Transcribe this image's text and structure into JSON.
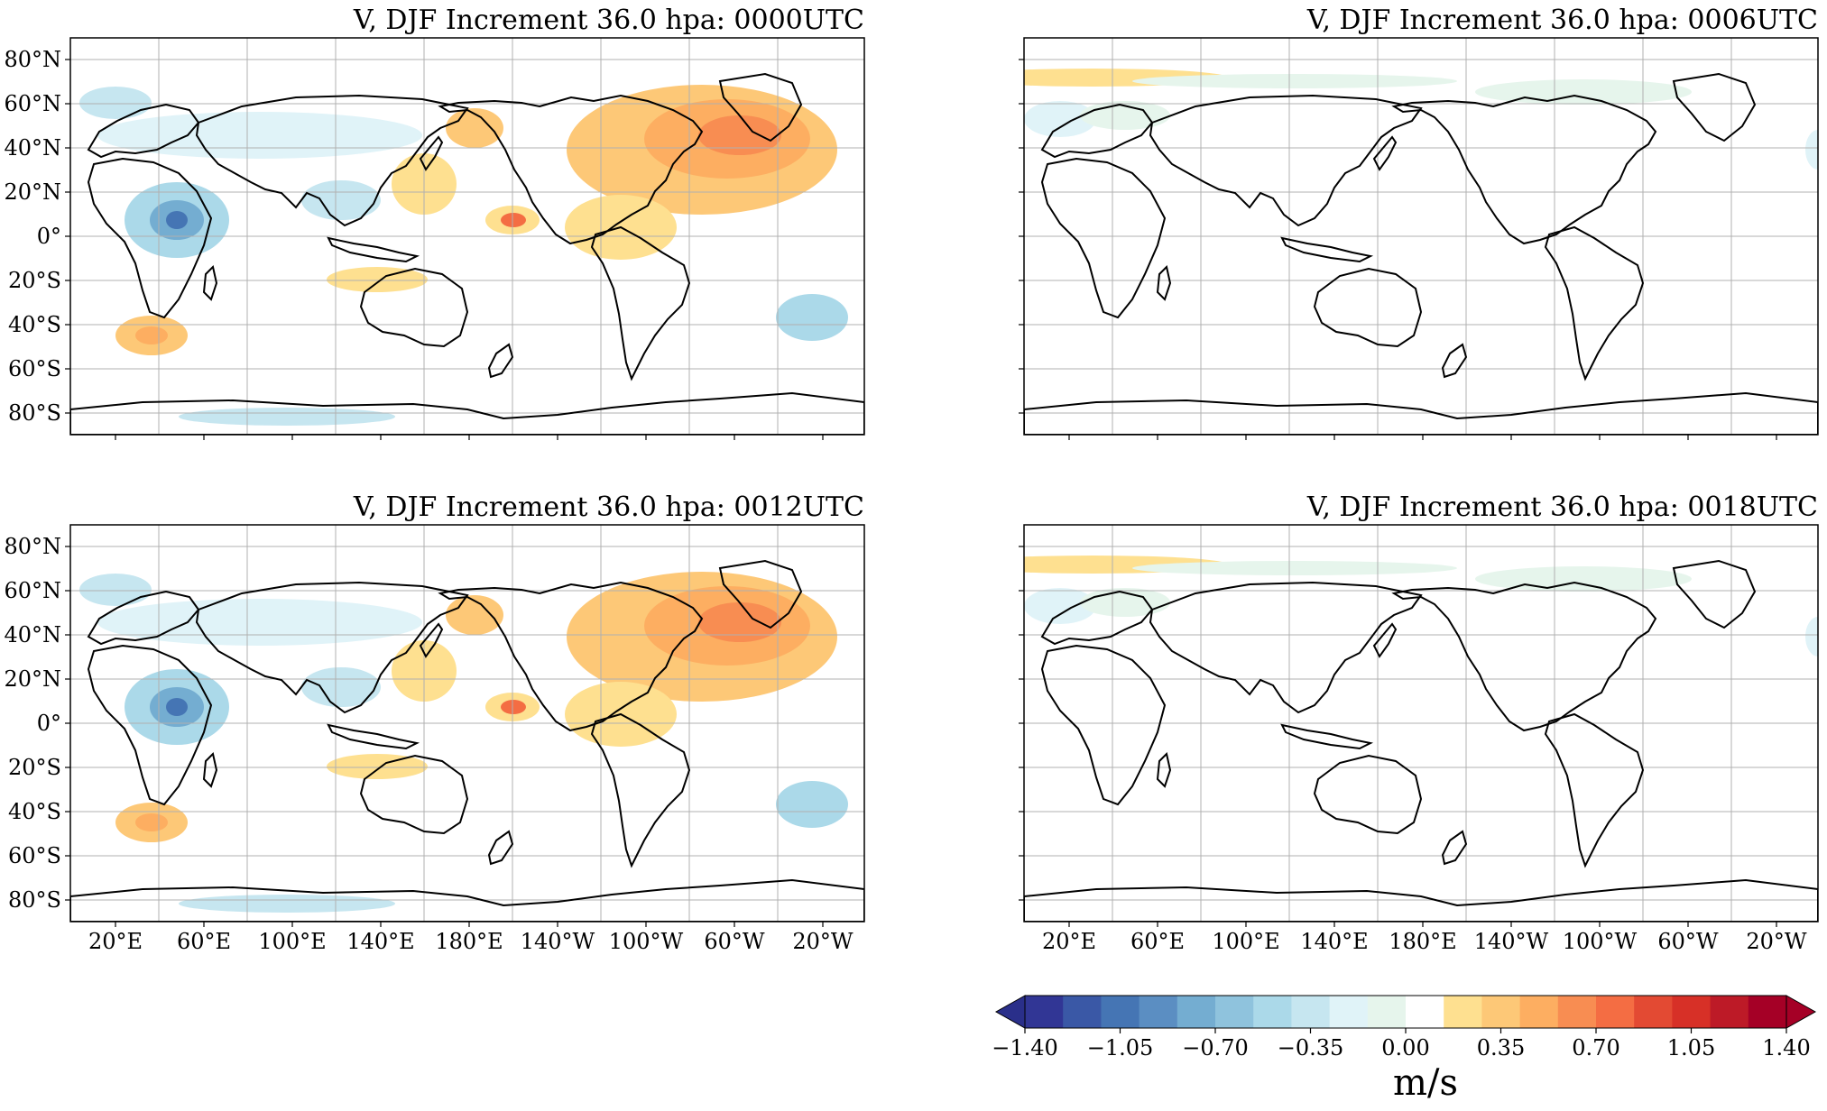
{
  "panels": [
    {
      "id": "p0000",
      "title": "V, DJF Increment 36.0 hpa: 0000UTC",
      "show_lat_labels": true,
      "show_lon_labels": false,
      "intensity": "strong"
    },
    {
      "id": "p0006",
      "title": "V, DJF Increment 36.0 hpa: 0006UTC",
      "show_lat_labels": false,
      "show_lon_labels": false,
      "intensity": "weak"
    },
    {
      "id": "p0012",
      "title": "V, DJF Increment 36.0 hpa: 0012UTC",
      "show_lat_labels": true,
      "show_lon_labels": true,
      "intensity": "strong"
    },
    {
      "id": "p0018",
      "title": "V, DJF Increment 36.0 hpa: 0018UTC",
      "show_lat_labels": false,
      "show_lon_labels": true,
      "intensity": "weak"
    }
  ],
  "lat_labels": [
    "80°N",
    "60°N",
    "40°N",
    "20°N",
    "0°",
    "20°S",
    "40°S",
    "60°S",
    "80°S"
  ],
  "lon_labels": [
    "20°E",
    "60°E",
    "100°E",
    "140°E",
    "180°E",
    "140°W",
    "100°W",
    "60°W",
    "20°W"
  ],
  "colorbar": {
    "tick_labels": [
      "−1.40",
      "−1.05",
      "−0.70",
      "−0.35",
      "0.00",
      "0.35",
      "0.70",
      "1.05",
      "1.40"
    ],
    "unit": "m/s",
    "min": -1.4,
    "max": 1.4,
    "colors": [
      "#313695",
      "#3a58a6",
      "#4575b4",
      "#5b8ec2",
      "#74add1",
      "#8fc3dd",
      "#abd9e9",
      "#c6e6f0",
      "#e0f3f8",
      "#e6f5ec",
      "#ffffff",
      "#fee090",
      "#fdc877",
      "#fdae61",
      "#f88d52",
      "#f46d43",
      "#e34a33",
      "#d73027",
      "#bd1a27",
      "#a50026"
    ]
  }
}
